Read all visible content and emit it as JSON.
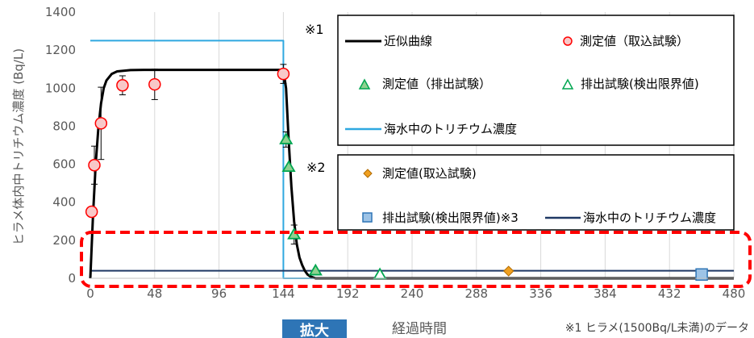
{
  "chart_data": {
    "type": "scatter",
    "title": "",
    "xlabel": "経過時間",
    "ylabel": "ヒラメ体内中トリチウム濃度 (Bq/L)",
    "xlim": [
      0,
      480
    ],
    "ylim": [
      0,
      1400
    ],
    "x_ticks": [
      0,
      48,
      96,
      144,
      192,
      240,
      288,
      336,
      384,
      432,
      480
    ],
    "x_tick_labels": [
      "0",
      "48",
      "96",
      "144",
      "192",
      "240",
      "288",
      "336",
      "384",
      "432",
      "480"
    ],
    "y_ticks": [
      0,
      200,
      400,
      600,
      800,
      1000,
      1200,
      1400
    ],
    "y_tick_labels": [
      "0",
      "200",
      "400",
      "600",
      "800",
      "1000",
      "1200",
      "1400"
    ],
    "grid": "vertical",
    "series": [
      {
        "name": "近似曲線",
        "kind": "line",
        "color": "#000000",
        "x": [
          0,
          2,
          4,
          6,
          8,
          10,
          12,
          16,
          20,
          30,
          40,
          60,
          80,
          100,
          120,
          144,
          146,
          148,
          150,
          152,
          154,
          156,
          158,
          160,
          162,
          164,
          168,
          480
        ],
        "y": [
          0,
          330,
          600,
          790,
          920,
          1000,
          1040,
          1075,
          1088,
          1095,
          1096,
          1096,
          1096,
          1096,
          1096,
          1096,
          1000,
          720,
          480,
          300,
          180,
          110,
          70,
          40,
          20,
          10,
          0,
          0
        ]
      },
      {
        "name": "測定値（取込試験）",
        "kind": "marker",
        "marker": "circle",
        "color": "#ff0000",
        "fill": "#f8c8c8",
        "x": [
          1,
          3,
          8,
          24,
          48,
          144
        ],
        "y": [
          350,
          595,
          815,
          1015,
          1020,
          1075
        ],
        "err": [
          0,
          100,
          190,
          50,
          80,
          50
        ]
      },
      {
        "name": "測定値（排出試験）",
        "kind": "marker",
        "marker": "triangle",
        "color": "#00a650",
        "fill": "#8fd18f",
        "x": [
          146,
          148,
          152,
          168
        ],
        "y": [
          730,
          585,
          230,
          40
        ],
        "err": [
          40,
          0,
          50,
          0
        ]
      },
      {
        "name": "排出試験(検出限界値)",
        "kind": "marker",
        "marker": "triangle-open",
        "color": "#00a650",
        "fill": "#ffffff",
        "x": [
          216
        ],
        "y": [
          20
        ]
      },
      {
        "name": "海水中のトリチウム濃度",
        "kind": "step",
        "color": "#2fa8e0",
        "x": [
          0,
          144,
          144,
          480
        ],
        "y": [
          1250,
          1250,
          0,
          0
        ]
      },
      {
        "name": "測定値(取込試験)",
        "kind": "marker",
        "marker": "diamond",
        "color": "#b06a00",
        "fill": "#f0a020",
        "x": [
          312
        ],
        "y": [
          38
        ]
      },
      {
        "name": "排出試験(検出限界値)※3",
        "kind": "marker",
        "marker": "square",
        "color": "#2e75b6",
        "fill": "#9dc3e6",
        "x": [
          456
        ],
        "y": [
          20
        ]
      },
      {
        "name": "海水中のトリチウム濃度",
        "kind": "line",
        "color": "#1f3864",
        "x": [
          0,
          480
        ],
        "y": [
          40,
          40
        ]
      }
    ],
    "legend_groups": [
      {
        "label": "※1",
        "items": [
          0,
          1,
          2,
          3,
          4
        ]
      },
      {
        "label": "※2",
        "items": [
          5,
          6,
          7
        ]
      }
    ],
    "callout_label": "拡大",
    "footnote": "※1 ヒラメ(1500Bq/L未満)のデータ"
  }
}
